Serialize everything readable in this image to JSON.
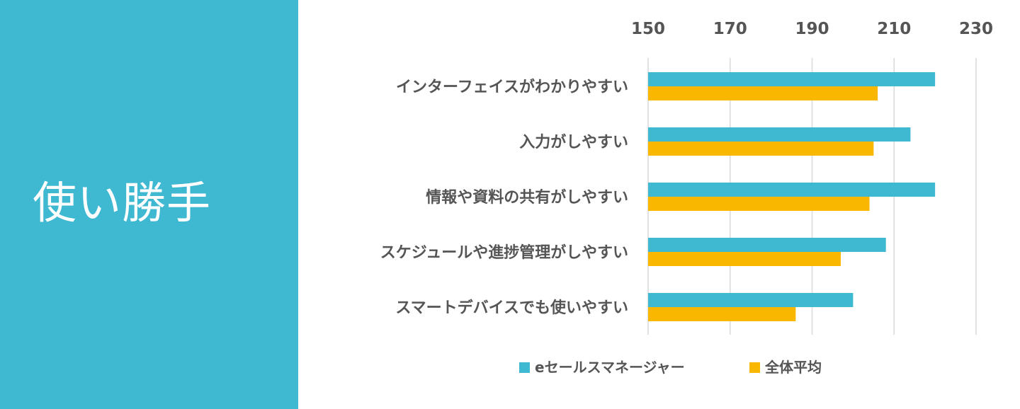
{
  "side_panel": {
    "title": "使い勝手",
    "color": "#3fb8d2"
  },
  "chart_data": {
    "type": "bar",
    "orientation": "horizontal",
    "categories": [
      "インターフェイスがわかりやすい",
      "入力がしやすい",
      "情報や資料の共有がしやすい",
      "スケジュールや進捗管理がしやすい",
      "スマートデバイスでも使いやすい"
    ],
    "series": [
      {
        "name": "eセールスマネージャー",
        "color": "#3fb8d2",
        "values": [
          220,
          214,
          220,
          208,
          200
        ]
      },
      {
        "name": "全体平均",
        "color": "#f9b700",
        "values": [
          206,
          205,
          204,
          197,
          186
        ]
      }
    ],
    "xlim": [
      150,
      230
    ],
    "xticks": [
      150,
      170,
      190,
      210,
      230
    ],
    "axis_position": "top",
    "grid": true,
    "legend_position": "bottom"
  }
}
